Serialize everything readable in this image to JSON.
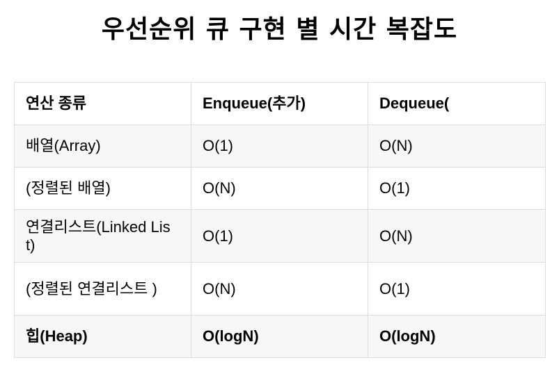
{
  "title": "우선순위 큐 구현 별 시간 복잡도",
  "table": {
    "headers": [
      "연산 종류",
      "Enqueue(추가)",
      "Dequeue("
    ],
    "rows": [
      [
        "배열(Array)",
        "O(1)",
        "O(N)"
      ],
      [
        "(정렬된 배열)",
        "O(N)",
        "O(1)"
      ],
      [
        "연결리스트(Linked List)",
        "O(1)",
        "O(N)"
      ],
      [
        "(정렬된 연결리스트 )",
        "O(N)",
        "O(1)"
      ],
      [
        "힙(Heap)",
        "O(logN)",
        "O(logN)"
      ]
    ]
  }
}
